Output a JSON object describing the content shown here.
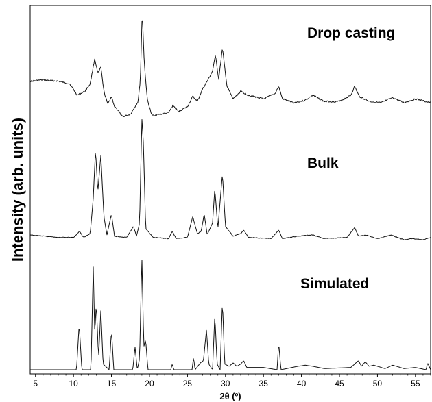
{
  "chart_data": {
    "type": "line",
    "xlabel": "2θ (º)",
    "ylabel": "Intensity (arb. units)",
    "xlim": [
      4.3,
      57
    ],
    "x_ticks": [
      5,
      10,
      15,
      20,
      25,
      30,
      35,
      40,
      45,
      50,
      55
    ],
    "x_tick_labels": [
      "5",
      "10",
      "15",
      "20",
      "25",
      "30",
      "35",
      "40",
      "45",
      "50",
      "55"
    ],
    "y_ticks": [],
    "grid": false,
    "legend": "none",
    "series": [
      {
        "name": "Drop casting",
        "points": [
          [
            4.3,
            0.44
          ],
          [
            6,
            0.45
          ],
          [
            8,
            0.44
          ],
          [
            9.5,
            0.42
          ],
          [
            10.5,
            0.33
          ],
          [
            11.5,
            0.36
          ],
          [
            12.2,
            0.42
          ],
          [
            12.8,
            0.62
          ],
          [
            13.2,
            0.5
          ],
          [
            13.6,
            0.55
          ],
          [
            14.0,
            0.36
          ],
          [
            14.5,
            0.26
          ],
          [
            15.0,
            0.32
          ],
          [
            15.4,
            0.24
          ],
          [
            16.5,
            0.16
          ],
          [
            17.5,
            0.18
          ],
          [
            18.1,
            0.24
          ],
          [
            18.5,
            0.28
          ],
          [
            18.8,
            0.45
          ],
          [
            19.05,
            1.0
          ],
          [
            19.3,
            0.6
          ],
          [
            19.7,
            0.3
          ],
          [
            20.3,
            0.17
          ],
          [
            21.5,
            0.18
          ],
          [
            22.5,
            0.19
          ],
          [
            23.1,
            0.25
          ],
          [
            23.8,
            0.2
          ],
          [
            25.0,
            0.24
          ],
          [
            25.7,
            0.32
          ],
          [
            26.3,
            0.28
          ],
          [
            27.0,
            0.38
          ],
          [
            27.7,
            0.45
          ],
          [
            28.3,
            0.52
          ],
          [
            28.7,
            0.65
          ],
          [
            29.1,
            0.45
          ],
          [
            29.6,
            0.7
          ],
          [
            30.2,
            0.4
          ],
          [
            31.0,
            0.3
          ],
          [
            32.0,
            0.36
          ],
          [
            33.0,
            0.33
          ],
          [
            35.0,
            0.3
          ],
          [
            36.5,
            0.34
          ],
          [
            37.0,
            0.4
          ],
          [
            37.5,
            0.3
          ],
          [
            39.0,
            0.27
          ],
          [
            40.5,
            0.29
          ],
          [
            41.5,
            0.33
          ],
          [
            43.0,
            0.28
          ],
          [
            45.0,
            0.28
          ],
          [
            46.5,
            0.33
          ],
          [
            47.0,
            0.4
          ],
          [
            47.6,
            0.32
          ],
          [
            49.0,
            0.28
          ],
          [
            50.5,
            0.27
          ],
          [
            52.0,
            0.31
          ],
          [
            53.5,
            0.27
          ],
          [
            55.0,
            0.3
          ],
          [
            56.3,
            0.28
          ],
          [
            57.0,
            0.27
          ]
        ]
      },
      {
        "name": "Bulk",
        "points": [
          [
            4.3,
            0.05
          ],
          [
            8,
            0.03
          ],
          [
            10.0,
            0.03
          ],
          [
            10.8,
            0.08
          ],
          [
            11.3,
            0.03
          ],
          [
            12.2,
            0.06
          ],
          [
            12.6,
            0.35
          ],
          [
            12.9,
            0.75
          ],
          [
            13.2,
            0.4
          ],
          [
            13.6,
            0.7
          ],
          [
            14.0,
            0.2
          ],
          [
            14.4,
            0.05
          ],
          [
            15.0,
            0.22
          ],
          [
            15.4,
            0.04
          ],
          [
            17.0,
            0.03
          ],
          [
            17.9,
            0.12
          ],
          [
            18.3,
            0.04
          ],
          [
            18.7,
            0.15
          ],
          [
            19.0,
            1.0
          ],
          [
            19.2,
            0.8
          ],
          [
            19.5,
            0.1
          ],
          [
            20.5,
            0.03
          ],
          [
            22.5,
            0.02
          ],
          [
            23.0,
            0.08
          ],
          [
            23.5,
            0.02
          ],
          [
            25.0,
            0.03
          ],
          [
            25.7,
            0.2
          ],
          [
            26.3,
            0.06
          ],
          [
            26.8,
            0.08
          ],
          [
            27.2,
            0.22
          ],
          [
            27.6,
            0.05
          ],
          [
            28.3,
            0.15
          ],
          [
            28.6,
            0.43
          ],
          [
            29.0,
            0.1
          ],
          [
            29.6,
            0.55
          ],
          [
            30.0,
            0.12
          ],
          [
            31.0,
            0.04
          ],
          [
            32.0,
            0.06
          ],
          [
            32.4,
            0.09
          ],
          [
            33.0,
            0.03
          ],
          [
            36.0,
            0.02
          ],
          [
            37.0,
            0.09
          ],
          [
            37.5,
            0.02
          ],
          [
            39.5,
            0.04
          ],
          [
            41.5,
            0.05
          ],
          [
            43.0,
            0.02
          ],
          [
            46.0,
            0.03
          ],
          [
            47.0,
            0.11
          ],
          [
            47.5,
            0.04
          ],
          [
            48.5,
            0.05
          ],
          [
            50.0,
            0.02
          ],
          [
            51.8,
            0.05
          ],
          [
            53.5,
            0.01
          ],
          [
            54.5,
            0.02
          ],
          [
            56.0,
            0.01
          ],
          [
            57.0,
            0.03
          ]
        ]
      },
      {
        "name": "Simulated",
        "points": [
          [
            4.3,
            0.0
          ],
          [
            10.4,
            0.0
          ],
          [
            10.75,
            0.4
          ],
          [
            11.1,
            0.0
          ],
          [
            12.3,
            0.0
          ],
          [
            12.6,
            0.9
          ],
          [
            12.8,
            0.3
          ],
          [
            13.0,
            0.58
          ],
          [
            13.3,
            0.1
          ],
          [
            13.6,
            0.52
          ],
          [
            13.9,
            0.05
          ],
          [
            14.7,
            0.0
          ],
          [
            15.0,
            0.35
          ],
          [
            15.3,
            0.0
          ],
          [
            17.8,
            0.0
          ],
          [
            18.1,
            0.2
          ],
          [
            18.4,
            0.0
          ],
          [
            18.7,
            0.1
          ],
          [
            19.0,
            0.98
          ],
          [
            19.25,
            0.2
          ],
          [
            19.5,
            0.26
          ],
          [
            19.8,
            0.0
          ],
          [
            22.8,
            0.0
          ],
          [
            23.0,
            0.05
          ],
          [
            23.2,
            0.0
          ],
          [
            25.6,
            0.0
          ],
          [
            25.8,
            0.11
          ],
          [
            26.0,
            0.0
          ],
          [
            26.7,
            0.06
          ],
          [
            27.1,
            0.08
          ],
          [
            27.5,
            0.35
          ],
          [
            27.8,
            0.05
          ],
          [
            28.3,
            0.0
          ],
          [
            28.6,
            0.48
          ],
          [
            28.9,
            0.05
          ],
          [
            29.3,
            0.0
          ],
          [
            29.6,
            0.6
          ],
          [
            29.9,
            0.05
          ],
          [
            30.5,
            0.03
          ],
          [
            31.0,
            0.06
          ],
          [
            31.5,
            0.03
          ],
          [
            32.0,
            0.05
          ],
          [
            32.4,
            0.08
          ],
          [
            32.8,
            0.02
          ],
          [
            35.0,
            0.02
          ],
          [
            36.8,
            0.0
          ],
          [
            37.0,
            0.24
          ],
          [
            37.3,
            0.0
          ],
          [
            39.5,
            0.03
          ],
          [
            40.5,
            0.04
          ],
          [
            41.5,
            0.03
          ],
          [
            43.0,
            0.01
          ],
          [
            46.5,
            0.02
          ],
          [
            47.0,
            0.05
          ],
          [
            47.5,
            0.08
          ],
          [
            47.9,
            0.03
          ],
          [
            48.4,
            0.07
          ],
          [
            48.9,
            0.03
          ],
          [
            49.5,
            0.04
          ],
          [
            51.0,
            0.01
          ],
          [
            52.0,
            0.04
          ],
          [
            53.5,
            0.01
          ],
          [
            55.0,
            0.02
          ],
          [
            56.4,
            0.0
          ],
          [
            56.6,
            0.06
          ],
          [
            57.0,
            0.0
          ]
        ]
      }
    ]
  }
}
